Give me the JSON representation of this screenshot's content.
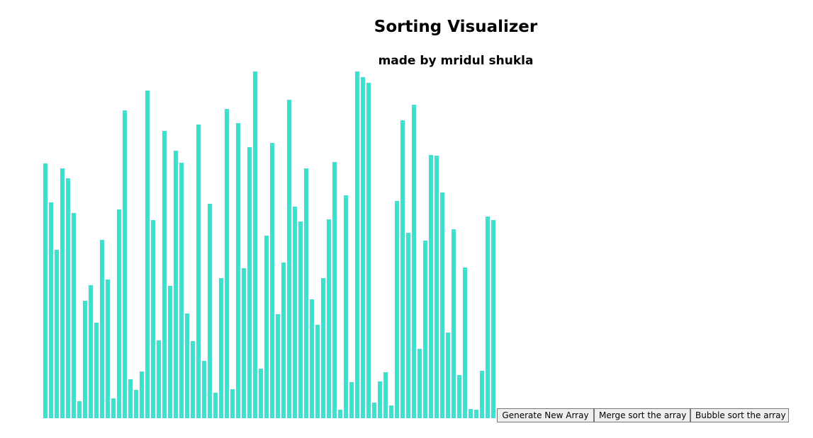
{
  "header": {
    "title": "Sorting Visualizer",
    "subtitle": "made by mridul shukla"
  },
  "colors": {
    "bar": "#40e0d0"
  },
  "array": [
    360,
    305,
    238,
    353,
    339,
    290,
    24,
    166,
    188,
    135,
    252,
    196,
    28,
    295,
    435,
    55,
    40,
    66,
    463,
    280,
    110,
    406,
    187,
    378,
    361,
    148,
    109,
    415,
    81,
    303,
    36,
    198,
    437,
    41,
    417,
    212,
    383,
    490,
    70,
    258,
    389,
    147,
    220,
    450,
    299,
    278,
    353,
    168,
    132,
    198,
    281,
    362,
    12,
    315,
    51,
    490,
    482,
    474,
    22,
    52,
    65,
    18,
    307,
    421,
    262,
    443,
    98,
    251,
    372,
    371,
    319,
    121,
    267,
    61,
    213,
    13,
    12,
    67,
    285,
    280
  ],
  "controls": {
    "generate_label": "Generate New Array",
    "merge_label": "Merge sort the array",
    "bubble_label": "Bubble sort the array"
  }
}
